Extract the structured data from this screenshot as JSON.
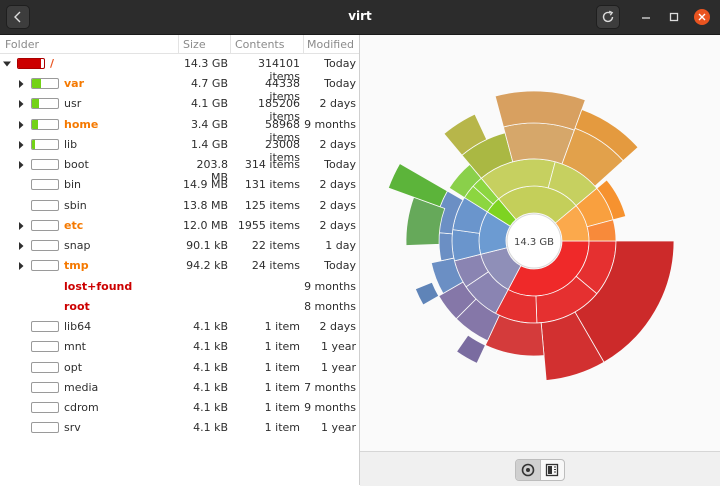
{
  "window": {
    "title": "virt"
  },
  "columns": {
    "folder": "Folder",
    "size": "Size",
    "contents": "Contents",
    "modified": "Modified"
  },
  "root": {
    "name": "/",
    "size": "14.3 GB",
    "contents": "314101 items",
    "modified": "Today",
    "fill": 0.9,
    "fill_color": "#cc0000",
    "name_color": "#e95420"
  },
  "rows": [
    {
      "name": "var",
      "size": "4.7 GB",
      "contents": "44338 items",
      "modified": "Today",
      "expandable": true,
      "fill": 0.33,
      "fill_color": "#73d216",
      "name_color": "#f57900",
      "bold": true
    },
    {
      "name": "usr",
      "size": "4.1 GB",
      "contents": "185206 items",
      "modified": "2 days",
      "expandable": true,
      "fill": 0.28,
      "fill_color": "#73d216",
      "name_color": "#2e2e2e",
      "bold": false
    },
    {
      "name": "home",
      "size": "3.4 GB",
      "contents": "58968 items",
      "modified": "9 months",
      "expandable": true,
      "fill": 0.24,
      "fill_color": "#73d216",
      "name_color": "#f57900",
      "bold": true
    },
    {
      "name": "lib",
      "size": "1.4 GB",
      "contents": "23008 items",
      "modified": "2 days",
      "expandable": true,
      "fill": 0.1,
      "fill_color": "#73d216",
      "name_color": "#2e2e2e",
      "bold": false
    },
    {
      "name": "boot",
      "size": "203.8 MB",
      "contents": "314 items",
      "modified": "Today",
      "expandable": true,
      "fill": 0,
      "fill_color": "#73d216",
      "name_color": "#2e2e2e",
      "bold": false
    },
    {
      "name": "bin",
      "size": "14.9 MB",
      "contents": "131 items",
      "modified": "2 days",
      "expandable": false,
      "fill": 0,
      "fill_color": "#73d216",
      "name_color": "#2e2e2e",
      "bold": false
    },
    {
      "name": "sbin",
      "size": "13.8 MB",
      "contents": "125 items",
      "modified": "2 days",
      "expandable": false,
      "fill": 0,
      "fill_color": "#73d216",
      "name_color": "#2e2e2e",
      "bold": false
    },
    {
      "name": "etc",
      "size": "12.0 MB",
      "contents": "1955 items",
      "modified": "2 days",
      "expandable": true,
      "fill": 0,
      "fill_color": "#73d216",
      "name_color": "#f57900",
      "bold": true
    },
    {
      "name": "snap",
      "size": "90.1 kB",
      "contents": "22 items",
      "modified": "1 day",
      "expandable": true,
      "fill": 0,
      "fill_color": "#73d216",
      "name_color": "#2e2e2e",
      "bold": false
    },
    {
      "name": "tmp",
      "size": "94.2 kB",
      "contents": "24 items",
      "modified": "Today",
      "expandable": true,
      "fill": 0,
      "fill_color": "#73d216",
      "name_color": "#f57900",
      "bold": true
    },
    {
      "name": "lost+found",
      "size": "",
      "contents": "",
      "modified": "9 months",
      "expandable": false,
      "nobar": true,
      "fill": 0,
      "fill_color": "#73d216",
      "name_color": "#cc0000",
      "bold": true
    },
    {
      "name": "root",
      "size": "",
      "contents": "",
      "modified": "8 months",
      "expandable": false,
      "nobar": true,
      "fill": 0,
      "fill_color": "#73d216",
      "name_color": "#cc0000",
      "bold": true
    },
    {
      "name": "lib64",
      "size": "4.1 kB",
      "contents": "1 item",
      "modified": "2 days",
      "expandable": false,
      "fill": 0,
      "fill_color": "#73d216",
      "name_color": "#2e2e2e",
      "bold": false
    },
    {
      "name": "mnt",
      "size": "4.1 kB",
      "contents": "1 item",
      "modified": "1 year",
      "expandable": false,
      "fill": 0,
      "fill_color": "#73d216",
      "name_color": "#2e2e2e",
      "bold": false
    },
    {
      "name": "opt",
      "size": "4.1 kB",
      "contents": "1 item",
      "modified": "1 year",
      "expandable": false,
      "fill": 0,
      "fill_color": "#73d216",
      "name_color": "#2e2e2e",
      "bold": false
    },
    {
      "name": "media",
      "size": "4.1 kB",
      "contents": "1 item",
      "modified": "7 months",
      "expandable": false,
      "fill": 0,
      "fill_color": "#73d216",
      "name_color": "#2e2e2e",
      "bold": false
    },
    {
      "name": "cdrom",
      "size": "4.1 kB",
      "contents": "1 item",
      "modified": "9 months",
      "expandable": false,
      "fill": 0,
      "fill_color": "#73d216",
      "name_color": "#2e2e2e",
      "bold": false
    },
    {
      "name": "srv",
      "size": "4.1 kB",
      "contents": "1 item",
      "modified": "1 year",
      "expandable": false,
      "fill": 0,
      "fill_color": "#73d216",
      "name_color": "#2e2e2e",
      "bold": false
    }
  ],
  "chart": {
    "center_label": "14.3 GB"
  },
  "icons": {
    "back": "chevron-left-icon",
    "reload": "reload-icon",
    "minimize": "minimize-icon",
    "maximize": "maximize-icon",
    "close": "close-icon",
    "rings": "rings-chart-icon",
    "treemap": "treemap-chart-icon"
  }
}
